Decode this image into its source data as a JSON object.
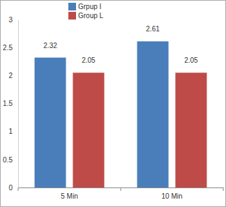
{
  "chart_data": {
    "type": "bar",
    "categories": [
      "5 Min",
      "10 Min"
    ],
    "series": [
      {
        "name": "Grpup I",
        "color": "#4a7ebb",
        "values": [
          2.32,
          2.61
        ]
      },
      {
        "name": "Group L",
        "color": "#be4b48",
        "values": [
          2.05,
          2.05
        ]
      }
    ],
    "ylim": [
      0,
      3
    ],
    "yticks": [
      0,
      0.5,
      1,
      1.5,
      2,
      2.5,
      3
    ],
    "grid": false,
    "legend": "top",
    "data_labels": true
  }
}
